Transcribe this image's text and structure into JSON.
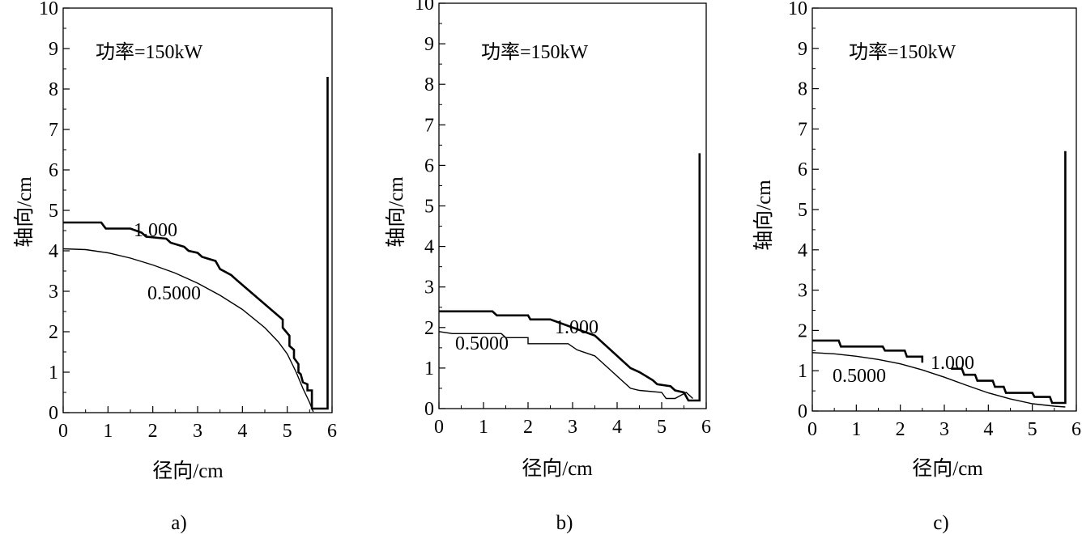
{
  "chart_data": [
    {
      "type": "line",
      "panel": "a)",
      "xlabel": "径向/cm",
      "ylabel": "轴向/cm",
      "xlim": [
        0,
        6
      ],
      "ylim": [
        0,
        10
      ],
      "xticks": [
        0,
        1,
        2,
        3,
        4,
        5,
        6
      ],
      "yticks": [
        0,
        1,
        2,
        3,
        4,
        5,
        6,
        7,
        8,
        9,
        10
      ],
      "annotation": "功率=150kW",
      "contour_labels": [
        "1.000",
        "0.5000"
      ],
      "series": [
        {
          "name": "1.000",
          "x": [
            0,
            0.85,
            0.95,
            1.5,
            1.75,
            1.85,
            2.3,
            2.4,
            2.7,
            2.8,
            3.0,
            3.1,
            3.4,
            3.5,
            3.75,
            3.85,
            4.9,
            4.9,
            5.05,
            5.05,
            5.15,
            5.15,
            5.25,
            5.25,
            5.3,
            5.35,
            5.45,
            5.45,
            5.55,
            5.55,
            5.65,
            5.65,
            5.9,
            5.9
          ],
          "y": [
            4.7,
            4.7,
            4.55,
            4.55,
            4.45,
            4.35,
            4.3,
            4.2,
            4.1,
            4.0,
            3.95,
            3.85,
            3.75,
            3.55,
            3.4,
            3.3,
            2.3,
            2.1,
            1.9,
            1.65,
            1.55,
            1.35,
            1.2,
            1.0,
            0.95,
            0.75,
            0.7,
            0.55,
            0.55,
            0.1,
            0.1,
            0.1,
            0.1,
            8.3
          ]
        },
        {
          "name": "0.5000",
          "x": [
            0,
            0.5,
            1.0,
            1.5,
            2.0,
            2.5,
            3.0,
            3.5,
            4.0,
            4.5,
            4.8,
            5.0,
            5.2,
            5.35,
            5.5,
            5.58
          ],
          "y": [
            4.05,
            4.03,
            3.95,
            3.82,
            3.65,
            3.45,
            3.2,
            2.9,
            2.55,
            2.1,
            1.75,
            1.45,
            1.0,
            0.6,
            0.25,
            0.02
          ]
        }
      ]
    },
    {
      "type": "line",
      "panel": "b)",
      "xlabel": "径向/cm",
      "ylabel": "轴向/cm",
      "xlim": [
        0,
        6
      ],
      "ylim": [
        0,
        10
      ],
      "xticks": [
        0,
        1,
        2,
        3,
        4,
        5,
        6
      ],
      "yticks": [
        0,
        1,
        2,
        3,
        4,
        5,
        6,
        7,
        8,
        9,
        10
      ],
      "annotation": "功率=150kW",
      "contour_labels": [
        "1.000",
        "0.5000"
      ],
      "series": [
        {
          "name": "1.000",
          "x": [
            0,
            1.2,
            1.3,
            2.0,
            2.05,
            2.5,
            3.5,
            3.7,
            4.3,
            4.5,
            4.8,
            4.9,
            5.2,
            5.3,
            5.5,
            5.6,
            5.85,
            5.85
          ],
          "y": [
            2.4,
            2.4,
            2.3,
            2.3,
            2.2,
            2.2,
            1.8,
            1.6,
            1.0,
            0.9,
            0.7,
            0.6,
            0.55,
            0.45,
            0.4,
            0.2,
            0.2,
            6.3
          ]
        },
        {
          "name": "0.5000",
          "x": [
            0,
            0.3,
            1.4,
            1.5,
            2.0,
            2.0,
            2.9,
            3.1,
            3.5,
            3.7,
            4.3,
            4.5,
            5.0,
            5.1,
            5.3,
            5.55,
            5.7
          ],
          "y": [
            1.9,
            1.85,
            1.85,
            1.75,
            1.75,
            1.6,
            1.6,
            1.45,
            1.3,
            1.1,
            0.5,
            0.45,
            0.4,
            0.25,
            0.25,
            0.4,
            0.25
          ]
        }
      ]
    },
    {
      "type": "line",
      "panel": "c)",
      "xlabel": "径向/cm",
      "ylabel": "轴向/cm",
      "xlim": [
        0,
        6
      ],
      "ylim": [
        0,
        10
      ],
      "xticks": [
        0,
        1,
        2,
        3,
        4,
        5,
        6
      ],
      "yticks": [
        0,
        1,
        2,
        3,
        4,
        5,
        6,
        7,
        8,
        9,
        10
      ],
      "annotation": "功率=150kW",
      "contour_labels": [
        "1.000",
        "0.5000"
      ],
      "series": [
        {
          "name": "1.000",
          "x": [
            0,
            0.6,
            0.65,
            1.6,
            1.65,
            2.1,
            2.15,
            2.5,
            2.5
          ],
          "y": [
            1.75,
            1.75,
            1.6,
            1.6,
            1.5,
            1.5,
            1.35,
            1.35,
            1.2
          ]
        },
        {
          "name": "1.000",
          "x": [
            3.15,
            3.4,
            3.45,
            3.7,
            3.75,
            4.1,
            4.15,
            4.35,
            4.4,
            5.0,
            5.05,
            5.4,
            5.45,
            5.75,
            5.75
          ],
          "y": [
            1.05,
            1.05,
            0.9,
            0.9,
            0.75,
            0.75,
            0.6,
            0.6,
            0.45,
            0.45,
            0.35,
            0.35,
            0.2,
            0.2,
            6.45
          ]
        },
        {
          "name": "0.5000",
          "x": [
            0,
            0.5,
            1.0,
            1.5,
            2.0,
            2.5,
            3.0,
            3.5,
            4.0,
            4.5,
            5.0,
            5.5,
            5.75
          ],
          "y": [
            1.45,
            1.42,
            1.36,
            1.28,
            1.17,
            1.02,
            0.84,
            0.64,
            0.45,
            0.3,
            0.18,
            0.12,
            0.1
          ]
        }
      ]
    }
  ]
}
